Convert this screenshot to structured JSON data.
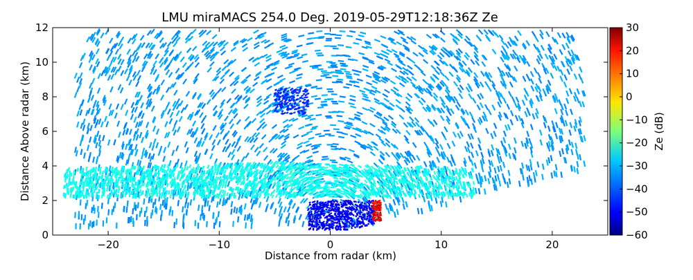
{
  "chart_data": {
    "type": "heatmap",
    "title": "LMU miraMACS 254.0 Deg. 2019-05-29T12:18:36Z  Ze",
    "xlabel": "Distance from radar (km)",
    "ylabel": "Distance Above radar  (km)",
    "xlim": [
      -25,
      25
    ],
    "ylim": [
      0,
      12
    ],
    "xticks": [
      -20,
      -10,
      0,
      10,
      20
    ],
    "yticks": [
      0,
      2,
      4,
      6,
      8,
      10,
      12
    ],
    "colorbar": {
      "label": "Ze (dB)",
      "range": [
        -60,
        30
      ],
      "ticks": [
        30,
        20,
        10,
        0,
        -10,
        -20,
        -30,
        -40,
        -50,
        -60
      ],
      "colormap": "jet"
    },
    "scan_azimuth_deg": 254.0,
    "max_range_km": 25,
    "regions": [
      {
        "name": "sparse echoes upper field",
        "ze_db": -35,
        "x_range": [
          -23,
          23
        ],
        "y_range": [
          0.5,
          11.8
        ]
      },
      {
        "name": "cloud layer",
        "ze_db": -25,
        "x_range": [
          -24,
          13
        ],
        "y_range": [
          2.2,
          4.2
        ]
      },
      {
        "name": "low-level clear region",
        "ze_db": -50,
        "x_range": [
          -2,
          4
        ],
        "y_range": [
          0.3,
          2.0
        ]
      },
      {
        "name": "strong echo",
        "ze_db": 20,
        "x_range": [
          3.8,
          4.6
        ],
        "y_range": [
          0.8,
          2.0
        ]
      },
      {
        "name": "elevated cluster",
        "ze_db": -45,
        "x_range": [
          -5,
          -2
        ],
        "y_range": [
          7.0,
          8.5
        ]
      }
    ]
  }
}
